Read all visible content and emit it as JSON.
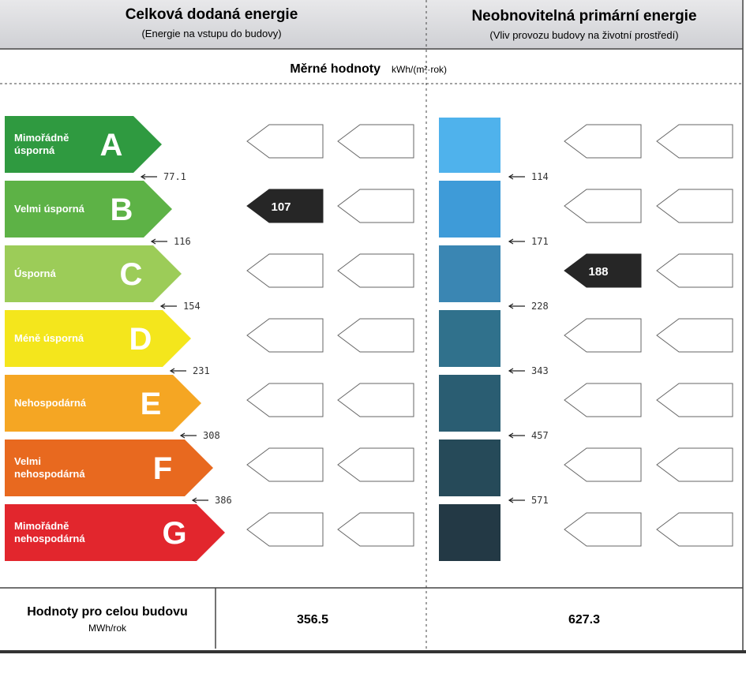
{
  "header": {
    "left": {
      "title": "Celková dodaná energie",
      "subtitle": "(Energie na vstupu do budovy)"
    },
    "right": {
      "title": "Neobnovitelná primární energie",
      "subtitle": "(Vliv provozu budovy na životní prostředí)"
    }
  },
  "subheader": {
    "label": "Měrné hodnoty",
    "unit": "kWh/(m²·rok)"
  },
  "classes": [
    {
      "label": "Mimořádně úsporná",
      "letter": "A",
      "color": "#2f9a40"
    },
    {
      "label": "Velmi úsporná",
      "letter": "B",
      "color": "#5db246",
      "left_value": 107
    },
    {
      "label": "Úsporná",
      "letter": "C",
      "color": "#9ccc58",
      "right_value": 188
    },
    {
      "label": "Méně úsporná",
      "letter": "D",
      "color": "#f4e61c"
    },
    {
      "label": "Nehospodárná",
      "letter": "E",
      "color": "#f5a623"
    },
    {
      "label": "Velmi nehospodárná",
      "letter": "F",
      "color": "#e8691f"
    },
    {
      "label": "Mimořádně nehospodárná",
      "letter": "G",
      "color": "#e2262d"
    }
  ],
  "left_thresholds": [
    77.1,
    116,
    154,
    231,
    308,
    386
  ],
  "right_thresholds": [
    114,
    171,
    228,
    343,
    457,
    571
  ],
  "right_colors": [
    "#4fb2ec",
    "#3e9bd8",
    "#3a86b3",
    "#30718c",
    "#2a5d72",
    "#264a59",
    "#233945"
  ],
  "footer": {
    "label": "Hodnoty pro celou budovu",
    "unit": "MWh/rok",
    "left_value": 356.5,
    "right_value": 627.3
  }
}
